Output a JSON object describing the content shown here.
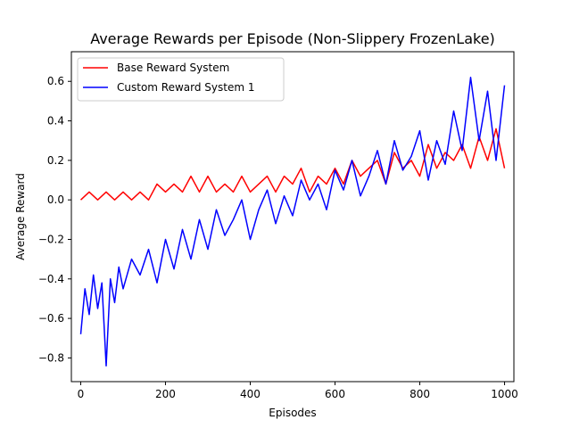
{
  "chart_data": {
    "type": "line",
    "title": "Average Rewards per Episode (Non-Slippery FrozenLake)",
    "xlabel": "Episodes",
    "ylabel": "Average Reward",
    "xlim": [
      -22,
      1022
    ],
    "ylim": [
      -0.92,
      0.75
    ],
    "xticks": [
      0,
      200,
      400,
      600,
      800,
      1000
    ],
    "xtick_labels": [
      "0",
      "200",
      "400",
      "600",
      "800",
      "1000"
    ],
    "yticks": [
      -0.8,
      -0.6,
      -0.4,
      -0.2,
      0.0,
      0.2,
      0.4,
      0.6
    ],
    "ytick_labels": [
      "−0.8",
      "−0.6",
      "−0.4",
      "−0.2",
      "0.0",
      "0.2",
      "0.4",
      "0.6"
    ],
    "grid": false,
    "legend_position": "top-left",
    "series": [
      {
        "name": "Base Reward System",
        "color": "#ff0000",
        "x": [
          0,
          20,
          40,
          60,
          80,
          100,
          120,
          140,
          160,
          180,
          200,
          220,
          240,
          260,
          280,
          300,
          320,
          340,
          360,
          380,
          400,
          420,
          440,
          460,
          480,
          500,
          520,
          540,
          560,
          580,
          600,
          620,
          640,
          660,
          680,
          700,
          720,
          740,
          760,
          780,
          800,
          820,
          840,
          860,
          880,
          900,
          920,
          940,
          960,
          980,
          1000
        ],
        "y": [
          0.0,
          0.04,
          0.0,
          0.04,
          0.0,
          0.04,
          0.0,
          0.04,
          0.0,
          0.08,
          0.04,
          0.08,
          0.04,
          0.12,
          0.04,
          0.12,
          0.04,
          0.08,
          0.04,
          0.12,
          0.04,
          0.08,
          0.12,
          0.04,
          0.12,
          0.08,
          0.16,
          0.04,
          0.12,
          0.08,
          0.16,
          0.08,
          0.2,
          0.12,
          0.16,
          0.2,
          0.08,
          0.24,
          0.16,
          0.2,
          0.12,
          0.28,
          0.16,
          0.24,
          0.2,
          0.28,
          0.16,
          0.32,
          0.2,
          0.36,
          0.16
        ]
      },
      {
        "name": "Custom Reward System 1",
        "color": "#0000ff",
        "x": [
          0,
          10,
          20,
          30,
          40,
          50,
          60,
          70,
          80,
          90,
          100,
          120,
          140,
          160,
          180,
          200,
          220,
          240,
          260,
          280,
          300,
          320,
          340,
          360,
          380,
          400,
          420,
          440,
          460,
          480,
          500,
          520,
          540,
          560,
          580,
          600,
          620,
          640,
          660,
          680,
          700,
          720,
          740,
          760,
          780,
          800,
          820,
          840,
          860,
          880,
          900,
          920,
          940,
          960,
          980,
          1000
        ],
        "y": [
          -0.68,
          -0.45,
          -0.58,
          -0.38,
          -0.55,
          -0.42,
          -0.84,
          -0.4,
          -0.52,
          -0.34,
          -0.45,
          -0.3,
          -0.38,
          -0.25,
          -0.42,
          -0.2,
          -0.35,
          -0.15,
          -0.3,
          -0.1,
          -0.25,
          -0.05,
          -0.18,
          -0.1,
          0.0,
          -0.2,
          -0.05,
          0.05,
          -0.12,
          0.02,
          -0.08,
          0.1,
          0.0,
          0.08,
          -0.05,
          0.15,
          0.05,
          0.2,
          0.02,
          0.12,
          0.25,
          0.08,
          0.3,
          0.15,
          0.22,
          0.35,
          0.1,
          0.3,
          0.18,
          0.45,
          0.25,
          0.62,
          0.3,
          0.55,
          0.2,
          0.58
        ]
      }
    ]
  }
}
